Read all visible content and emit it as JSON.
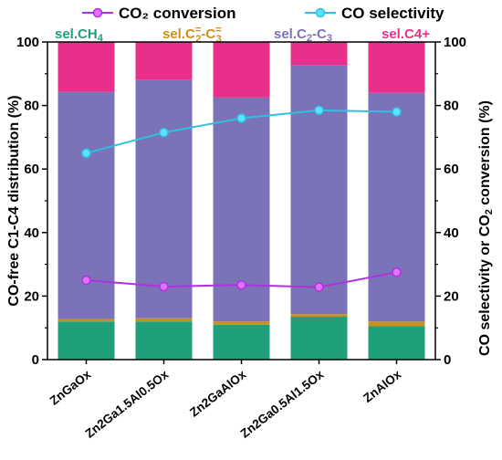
{
  "chart_data": {
    "type": "bar",
    "stacked": true,
    "categories": [
      "ZnGaOx",
      "Zn2Ga1.5Al0.5Ox",
      "Zn2GaAlOx",
      "Zn2Ga0.5Al1.5Ox",
      "ZnAlOx"
    ],
    "ylabel_left": "CO-free C1-C4 distribution (%)",
    "ylabel_right": "CO selectivity or CO₂ conversion (%)",
    "ylim_left": [
      0,
      100
    ],
    "ylim_right": [
      0,
      100
    ],
    "yticks": [
      "0",
      "20",
      "40",
      "60",
      "80",
      "100"
    ],
    "grid": false,
    "legend_position": "top",
    "bar_series": [
      {
        "name": "sel.CH₄",
        "color": "#20a07a",
        "values": [
          12.0,
          12.0,
          11.0,
          13.5,
          10.5
        ]
      },
      {
        "name": "sel.C₂⁼-C₃⁼",
        "color": "#c8901c",
        "values": [
          0.8,
          1.0,
          1.0,
          0.8,
          1.5
        ]
      },
      {
        "name": "sel.C₂-C₃",
        "color": "#7b73b8",
        "values": [
          71.5,
          75.0,
          70.5,
          78.5,
          72.0
        ]
      },
      {
        "name": "sel.C4+",
        "color": "#e8308a",
        "values": [
          15.7,
          12.0,
          17.5,
          7.2,
          16.0
        ]
      }
    ],
    "line_series": [
      {
        "name": "CO₂ conversion",
        "color": "#b030e0",
        "marker": "circle",
        "values": [
          25.0,
          23.0,
          23.5,
          22.8,
          27.5
        ]
      },
      {
        "name": "CO selectivity",
        "color": "#30c0e0",
        "marker": "circle",
        "values": [
          65.0,
          71.5,
          76.0,
          78.5,
          78.0
        ]
      }
    ]
  }
}
